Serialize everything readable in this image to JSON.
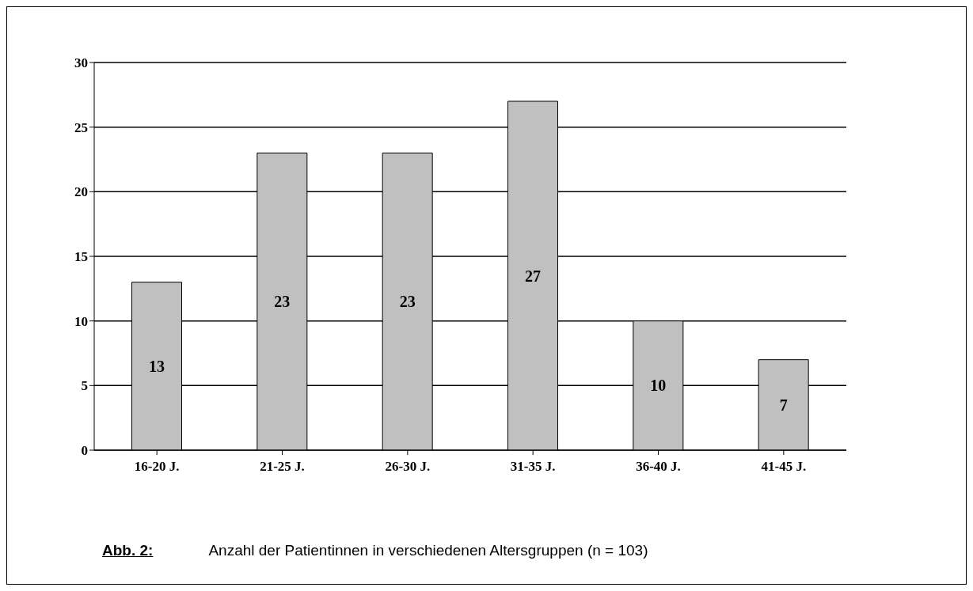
{
  "chart_data": {
    "type": "bar",
    "categories": [
      "16-20 J.",
      "21-25 J.",
      "26-30 J.",
      "31-35 J.",
      "36-40 J.",
      "41-45 J."
    ],
    "values": [
      13,
      23,
      23,
      27,
      10,
      7
    ],
    "color": "#c0c0c0",
    "ylim": [
      0,
      30
    ],
    "yticks": [
      0,
      5,
      10,
      15,
      20,
      25,
      30
    ],
    "grid": "y",
    "legend": false,
    "data_labels": true,
    "annotations": [
      "Abb. 2:",
      "Anzahl der Patientinnen in verschiedenen Altersgruppen (n = 103)"
    ]
  }
}
